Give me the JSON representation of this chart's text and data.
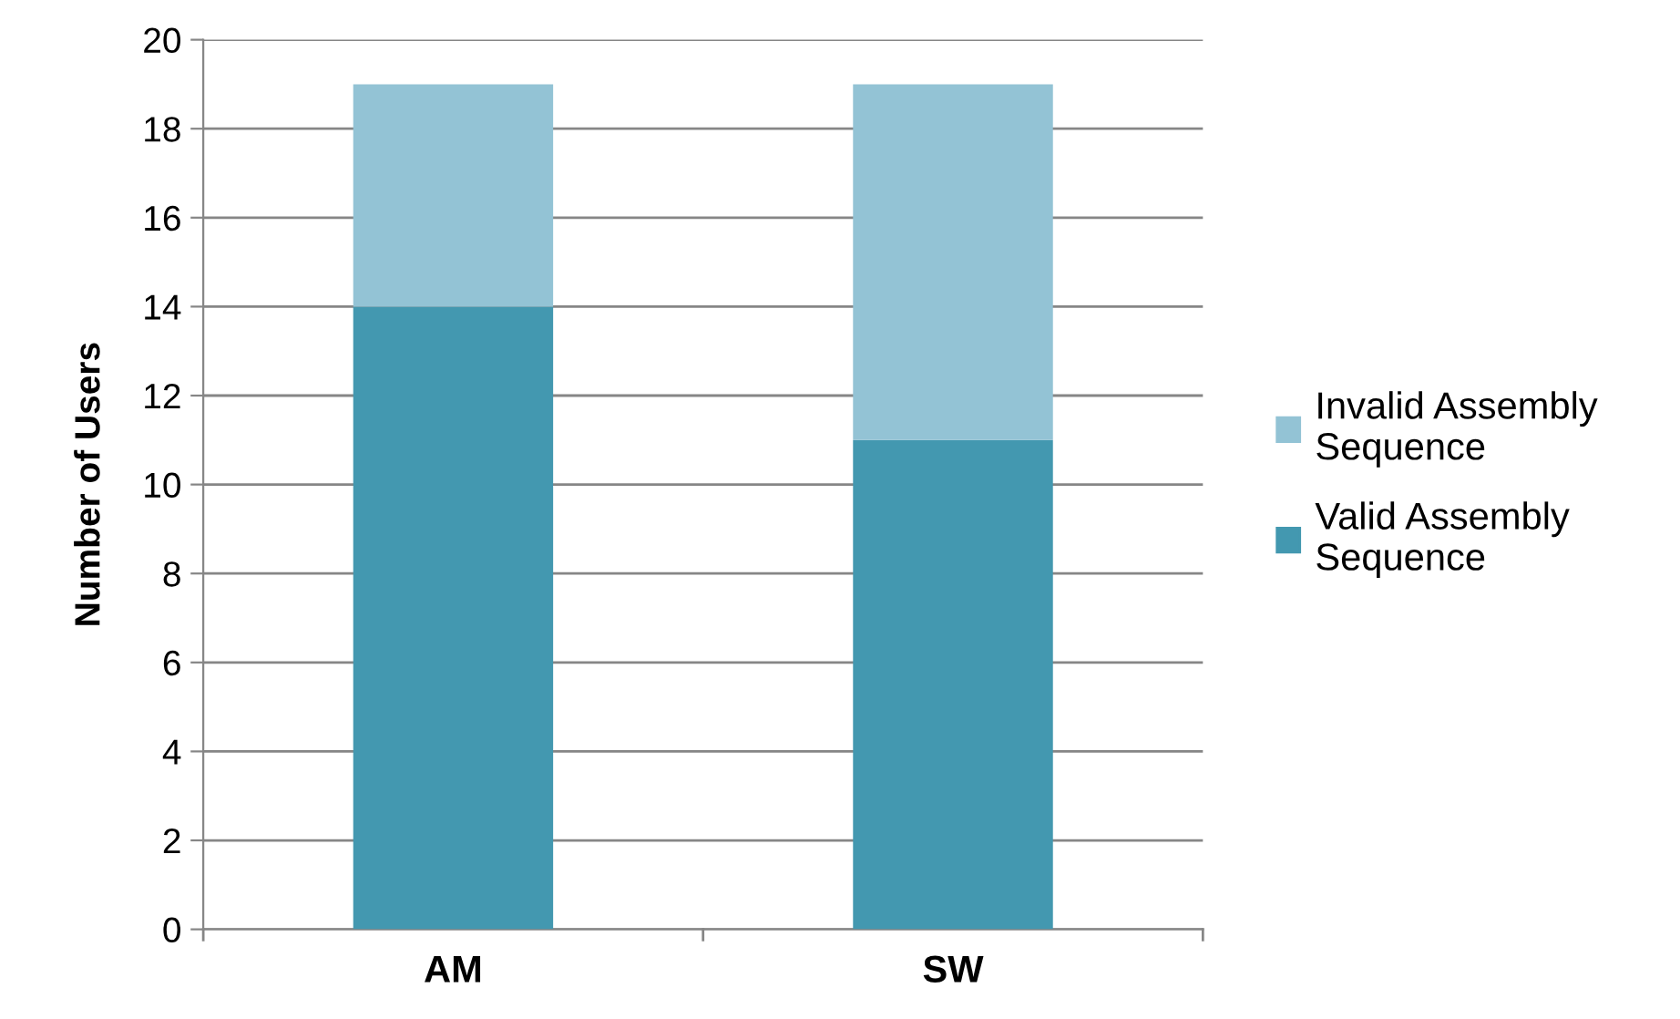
{
  "chart_data": {
    "type": "bar",
    "stacked": true,
    "ylabel": "Number of Users",
    "categories": [
      "AM",
      "SW"
    ],
    "series": [
      {
        "name": "Valid Assembly Sequence",
        "color": "#4398b0",
        "values": [
          14,
          11
        ]
      },
      {
        "name": "Invalid Assembly Sequence",
        "color": "#93c3d5",
        "values": [
          5,
          8
        ]
      }
    ],
    "ylim": [
      0,
      20
    ],
    "yticks": [
      0,
      2,
      4,
      6,
      8,
      10,
      12,
      14,
      16,
      18,
      20
    ],
    "grid": "y",
    "legend": "right"
  }
}
